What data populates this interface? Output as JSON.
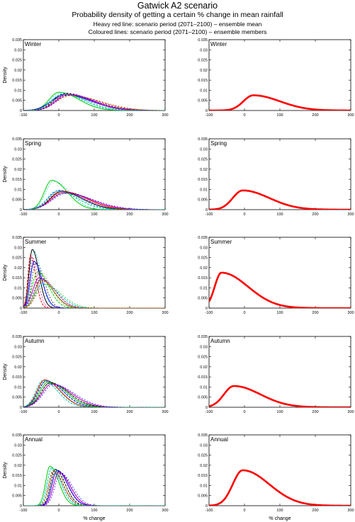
{
  "figure": {
    "title": "Gatwick A2 scenario",
    "subtitle": "Probability density of getting a certain % change in mean rainfall",
    "note_mean": "Heavy red line: scenario period (2071–2100) – ensemble mean",
    "note_members": "Coloured lines: scenario period (2071–2100) – ensemble members"
  },
  "chart_data": {
    "type": "line",
    "layout_desc": "5 rows x 2 columns of density plots; left column shows ensemble members, right column shows ensemble mean",
    "x_axis": {
      "label": "% change",
      "range": [
        -100,
        300
      ],
      "ticks": [
        -100,
        0,
        100,
        200,
        300
      ]
    },
    "y_axis": {
      "label": "Density",
      "range": [
        0,
        0.035
      ],
      "ticks": [
        0,
        0.005,
        0.01,
        0.015,
        0.02,
        0.025,
        0.03,
        0.035
      ]
    },
    "member_colors": [
      "#0000ff",
      "#00aa00",
      "#ff0000",
      "#00c8c8",
      "#cc00cc",
      "#000000",
      "#888800"
    ],
    "mean_color": "#ff0000",
    "panels": [
      {
        "season": "Winter",
        "members": [
          {
            "mode": 0,
            "sd": 45,
            "peak": 0.009,
            "color": "#00cc00"
          },
          {
            "mode": 20,
            "sd": 55,
            "peak": 0.0085,
            "color": "#000000"
          },
          {
            "mode": 15,
            "sd": 60,
            "peak": 0.0078,
            "color": "#0000ff"
          },
          {
            "mode": 30,
            "sd": 65,
            "peak": 0.0075,
            "color": "#ff0000"
          },
          {
            "mode": 25,
            "sd": 55,
            "peak": 0.008,
            "color": "#cc00cc"
          },
          {
            "mode": 10,
            "sd": 50,
            "peak": 0.0082,
            "color": "#00c8c8"
          }
        ],
        "mean": {
          "mode": 25,
          "peak": 0.0075
        }
      },
      {
        "season": "Spring",
        "members": [
          {
            "mode": -20,
            "sd": 35,
            "peak": 0.0145,
            "color": "#00cc00"
          },
          {
            "mode": 0,
            "sd": 50,
            "peak": 0.0095,
            "color": "#0000ff"
          },
          {
            "mode": 10,
            "sd": 55,
            "peak": 0.009,
            "color": "#ff0000"
          },
          {
            "mode": 5,
            "sd": 50,
            "peak": 0.0088,
            "color": "#000000"
          },
          {
            "mode": 15,
            "sd": 60,
            "peak": 0.0082,
            "color": "#cc00cc"
          },
          {
            "mode": -5,
            "sd": 45,
            "peak": 0.0092,
            "color": "#00c8c8"
          }
        ],
        "mean": {
          "mode": -5,
          "peak": 0.0095
        }
      },
      {
        "season": "Summer",
        "members": [
          {
            "mode": -75,
            "sd": 15,
            "peak": 0.029,
            "color": "#000000"
          },
          {
            "mode": -80,
            "sd": 12,
            "peak": 0.026,
            "color": "#ff0000"
          },
          {
            "mode": -70,
            "sd": 18,
            "peak": 0.023,
            "color": "#0000ff"
          },
          {
            "mode": -60,
            "sd": 25,
            "peak": 0.018,
            "color": "#00cc00"
          },
          {
            "mode": -55,
            "sd": 30,
            "peak": 0.015,
            "color": "#cc00cc"
          },
          {
            "mode": -45,
            "sd": 35,
            "peak": 0.012,
            "color": "#00c8c8"
          },
          {
            "mode": -50,
            "sd": 28,
            "peak": 0.014,
            "color": "#888800"
          }
        ],
        "mean": {
          "mode": -65,
          "peak": 0.0175
        }
      },
      {
        "season": "Autumn",
        "members": [
          {
            "mode": -40,
            "sd": 35,
            "peak": 0.0135,
            "color": "#ff0000"
          },
          {
            "mode": -35,
            "sd": 38,
            "peak": 0.013,
            "color": "#0000ff"
          },
          {
            "mode": -30,
            "sd": 40,
            "peak": 0.0125,
            "color": "#00cc00"
          },
          {
            "mode": -25,
            "sd": 42,
            "peak": 0.012,
            "color": "#000000"
          },
          {
            "mode": -20,
            "sd": 45,
            "peak": 0.0115,
            "color": "#cc00cc"
          },
          {
            "mode": -45,
            "sd": 33,
            "peak": 0.0132,
            "color": "#00c8c8"
          }
        ],
        "mean": {
          "mode": -30,
          "peak": 0.0105
        }
      },
      {
        "season": "Annual",
        "members": [
          {
            "mode": -25,
            "sd": 20,
            "peak": 0.0195,
            "color": "#00cc00"
          },
          {
            "mode": -10,
            "sd": 22,
            "peak": 0.018,
            "color": "#000000"
          },
          {
            "mode": -5,
            "sd": 24,
            "peak": 0.0175,
            "color": "#0000ff"
          },
          {
            "mode": -15,
            "sd": 22,
            "peak": 0.017,
            "color": "#ff0000"
          },
          {
            "mode": 0,
            "sd": 25,
            "peak": 0.0165,
            "color": "#cc00cc"
          },
          {
            "mode": -20,
            "sd": 21,
            "peak": 0.0185,
            "color": "#00c8c8"
          }
        ],
        "mean": {
          "mode": -5,
          "peak": 0.0175
        }
      }
    ]
  }
}
